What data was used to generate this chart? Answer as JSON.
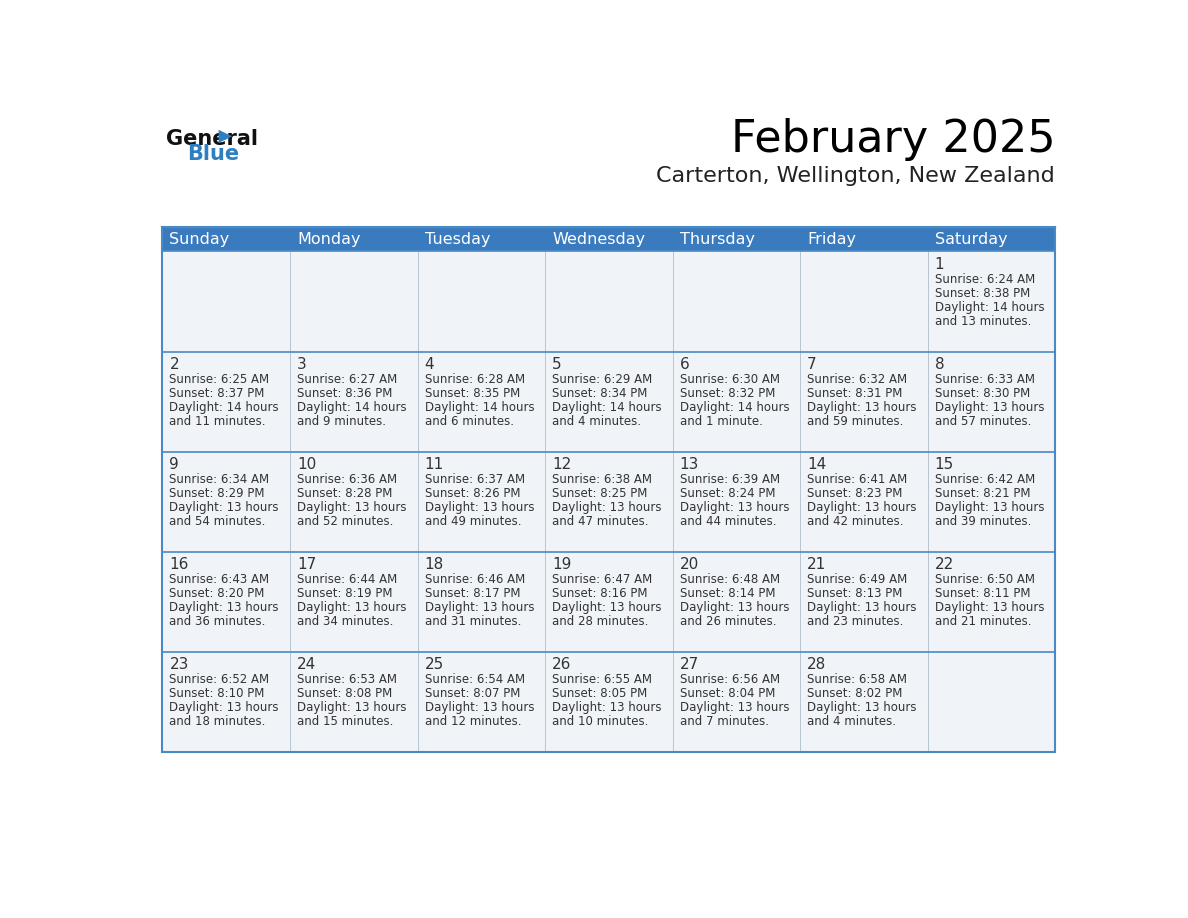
{
  "title": "February 2025",
  "subtitle": "Carterton, Wellington, New Zealand",
  "header_bg": "#3a7abf",
  "header_text": "#ffffff",
  "cell_bg": "#f0f4f8",
  "line_color": "#4a8ac4",
  "text_color": "#333333",
  "days_of_week": [
    "Sunday",
    "Monday",
    "Tuesday",
    "Wednesday",
    "Thursday",
    "Friday",
    "Saturday"
  ],
  "logo_general_color": "#111111",
  "logo_blue_color": "#2e7ec2",
  "title_fontsize": 32,
  "subtitle_fontsize": 16,
  "header_fontsize": 11.5,
  "day_num_fontsize": 11,
  "cell_fontsize": 8.5,
  "calendar": [
    [
      null,
      null,
      null,
      null,
      null,
      null,
      {
        "day": 1,
        "sunrise": "6:24 AM",
        "sunset": "8:38 PM",
        "daylight": "14 hours",
        "daylight2": "and 13 minutes."
      }
    ],
    [
      {
        "day": 2,
        "sunrise": "6:25 AM",
        "sunset": "8:37 PM",
        "daylight": "14 hours",
        "daylight2": "and 11 minutes."
      },
      {
        "day": 3,
        "sunrise": "6:27 AM",
        "sunset": "8:36 PM",
        "daylight": "14 hours",
        "daylight2": "and 9 minutes."
      },
      {
        "day": 4,
        "sunrise": "6:28 AM",
        "sunset": "8:35 PM",
        "daylight": "14 hours",
        "daylight2": "and 6 minutes."
      },
      {
        "day": 5,
        "sunrise": "6:29 AM",
        "sunset": "8:34 PM",
        "daylight": "14 hours",
        "daylight2": "and 4 minutes."
      },
      {
        "day": 6,
        "sunrise": "6:30 AM",
        "sunset": "8:32 PM",
        "daylight": "14 hours",
        "daylight2": "and 1 minute."
      },
      {
        "day": 7,
        "sunrise": "6:32 AM",
        "sunset": "8:31 PM",
        "daylight": "13 hours",
        "daylight2": "and 59 minutes."
      },
      {
        "day": 8,
        "sunrise": "6:33 AM",
        "sunset": "8:30 PM",
        "daylight": "13 hours",
        "daylight2": "and 57 minutes."
      }
    ],
    [
      {
        "day": 9,
        "sunrise": "6:34 AM",
        "sunset": "8:29 PM",
        "daylight": "13 hours",
        "daylight2": "and 54 minutes."
      },
      {
        "day": 10,
        "sunrise": "6:36 AM",
        "sunset": "8:28 PM",
        "daylight": "13 hours",
        "daylight2": "and 52 minutes."
      },
      {
        "day": 11,
        "sunrise": "6:37 AM",
        "sunset": "8:26 PM",
        "daylight": "13 hours",
        "daylight2": "and 49 minutes."
      },
      {
        "day": 12,
        "sunrise": "6:38 AM",
        "sunset": "8:25 PM",
        "daylight": "13 hours",
        "daylight2": "and 47 minutes."
      },
      {
        "day": 13,
        "sunrise": "6:39 AM",
        "sunset": "8:24 PM",
        "daylight": "13 hours",
        "daylight2": "and 44 minutes."
      },
      {
        "day": 14,
        "sunrise": "6:41 AM",
        "sunset": "8:23 PM",
        "daylight": "13 hours",
        "daylight2": "and 42 minutes."
      },
      {
        "day": 15,
        "sunrise": "6:42 AM",
        "sunset": "8:21 PM",
        "daylight": "13 hours",
        "daylight2": "and 39 minutes."
      }
    ],
    [
      {
        "day": 16,
        "sunrise": "6:43 AM",
        "sunset": "8:20 PM",
        "daylight": "13 hours",
        "daylight2": "and 36 minutes."
      },
      {
        "day": 17,
        "sunrise": "6:44 AM",
        "sunset": "8:19 PM",
        "daylight": "13 hours",
        "daylight2": "and 34 minutes."
      },
      {
        "day": 18,
        "sunrise": "6:46 AM",
        "sunset": "8:17 PM",
        "daylight": "13 hours",
        "daylight2": "and 31 minutes."
      },
      {
        "day": 19,
        "sunrise": "6:47 AM",
        "sunset": "8:16 PM",
        "daylight": "13 hours",
        "daylight2": "and 28 minutes."
      },
      {
        "day": 20,
        "sunrise": "6:48 AM",
        "sunset": "8:14 PM",
        "daylight": "13 hours",
        "daylight2": "and 26 minutes."
      },
      {
        "day": 21,
        "sunrise": "6:49 AM",
        "sunset": "8:13 PM",
        "daylight": "13 hours",
        "daylight2": "and 23 minutes."
      },
      {
        "day": 22,
        "sunrise": "6:50 AM",
        "sunset": "8:11 PM",
        "daylight": "13 hours",
        "daylight2": "and 21 minutes."
      }
    ],
    [
      {
        "day": 23,
        "sunrise": "6:52 AM",
        "sunset": "8:10 PM",
        "daylight": "13 hours",
        "daylight2": "and 18 minutes."
      },
      {
        "day": 24,
        "sunrise": "6:53 AM",
        "sunset": "8:08 PM",
        "daylight": "13 hours",
        "daylight2": "and 15 minutes."
      },
      {
        "day": 25,
        "sunrise": "6:54 AM",
        "sunset": "8:07 PM",
        "daylight": "13 hours",
        "daylight2": "and 12 minutes."
      },
      {
        "day": 26,
        "sunrise": "6:55 AM",
        "sunset": "8:05 PM",
        "daylight": "13 hours",
        "daylight2": "and 10 minutes."
      },
      {
        "day": 27,
        "sunrise": "6:56 AM",
        "sunset": "8:04 PM",
        "daylight": "13 hours",
        "daylight2": "and 7 minutes."
      },
      {
        "day": 28,
        "sunrise": "6:58 AM",
        "sunset": "8:02 PM",
        "daylight": "13 hours",
        "daylight2": "and 4 minutes."
      },
      null
    ]
  ]
}
